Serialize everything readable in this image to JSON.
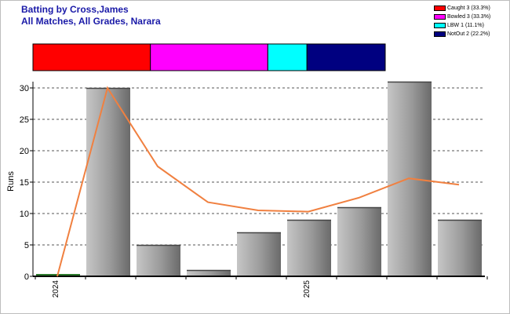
{
  "title_line1": "Batting by Cross,James",
  "title_line2": "All Matches, All Grades, Narara",
  "legend": [
    {
      "label": "Caught 3 (33.3%)",
      "color": "#ff0000"
    },
    {
      "label": "Bowled 3 (33.3%)",
      "color": "#ff00ff"
    },
    {
      "label": "LBW 1 (11.1%)",
      "color": "#00ffff"
    },
    {
      "label": "NotOut 2 (22.2%)",
      "color": "#000080"
    }
  ],
  "chart_data": {
    "type": "bar",
    "ylabel": "Runs",
    "ylim": [
      0,
      30
    ],
    "yticks": [
      0,
      5,
      10,
      15,
      20,
      25,
      30
    ],
    "grid": true,
    "x_labels": [
      "2024",
      "2025"
    ],
    "values": [
      0,
      30,
      5,
      1,
      7,
      9,
      11,
      31,
      9
    ],
    "line_values": [
      0,
      30,
      17.5,
      11.8,
      10.5,
      10.3,
      12.5,
      15.6,
      14.6
    ],
    "line_color": "#f08040",
    "dismissal_bar": [
      {
        "label": "Caught",
        "value": 3,
        "color": "#ff0000"
      },
      {
        "label": "Bowled",
        "value": 3,
        "color": "#ff00ff"
      },
      {
        "label": "LBW",
        "value": 1,
        "color": "#00ffff"
      },
      {
        "label": "NotOut",
        "value": 2,
        "color": "#000080"
      }
    ]
  }
}
